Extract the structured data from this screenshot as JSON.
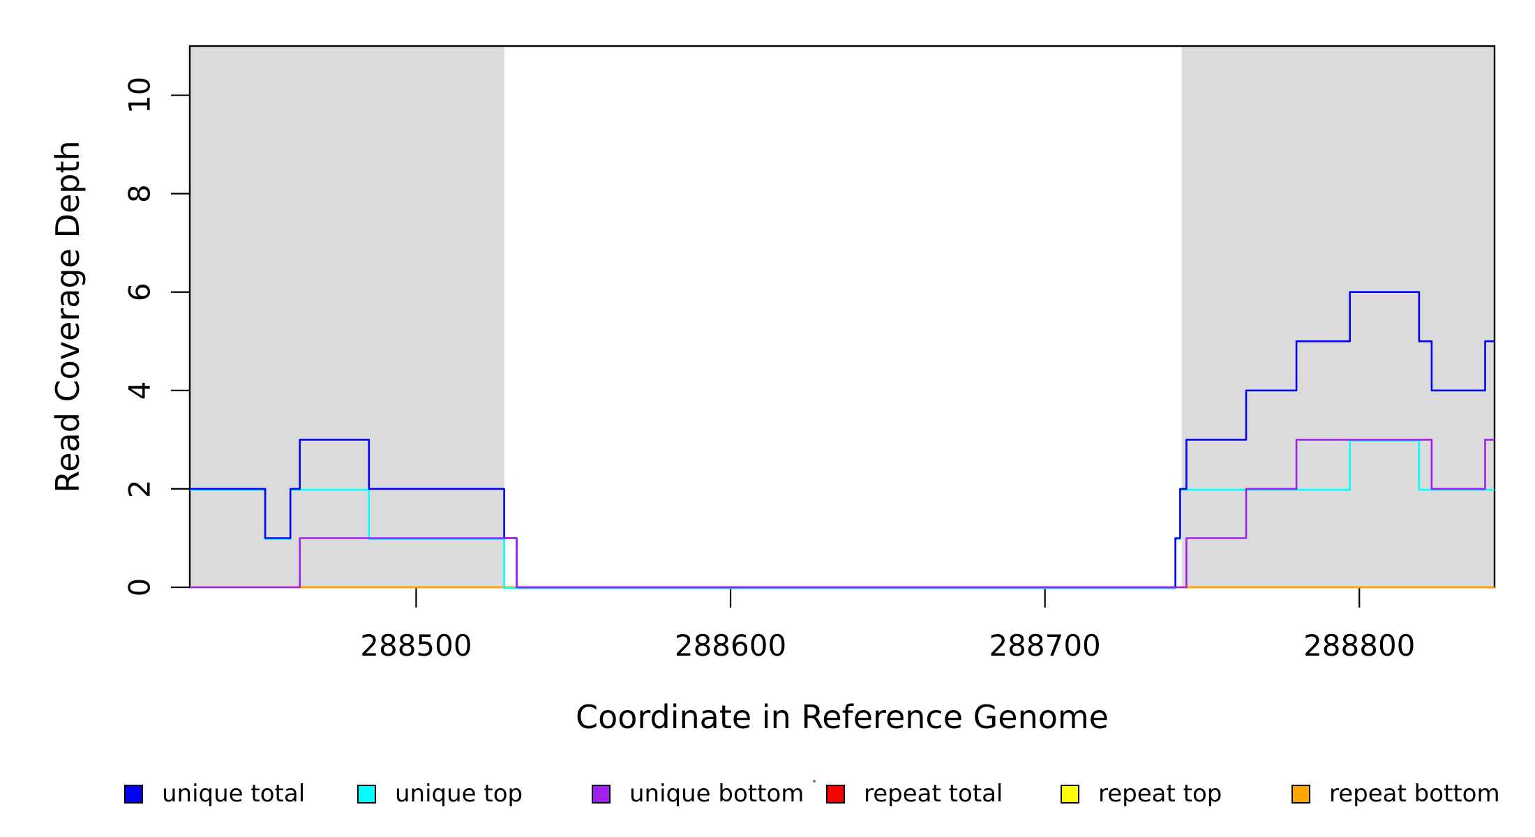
{
  "figure": {
    "xlabel": "Coordinate in Reference Genome",
    "ylabel": "Read Coverage Depth"
  },
  "legend": {
    "items": [
      {
        "label": "unique total",
        "color": "#0202F8"
      },
      {
        "label": "unique top",
        "color": "#00FFFF"
      },
      {
        "label": "unique bottom",
        "color": "#A020F0"
      },
      {
        "label": "repeat total",
        "color": "#FF0000"
      },
      {
        "label": "repeat top",
        "color": "#FFFF00"
      },
      {
        "label": "repeat bottom",
        "color": "#FFA500"
      }
    ]
  },
  "chart_data": {
    "type": "line",
    "subtype": "step",
    "title": "",
    "xlabel": "Coordinate in Reference Genome",
    "ylabel": "Read Coverage Depth",
    "xlim": [
      288428,
      288843
    ],
    "ylim": [
      0,
      11
    ],
    "x_ticks": [
      288500,
      288600,
      288700,
      288800
    ],
    "y_ticks": [
      0,
      2,
      4,
      6,
      8,
      10
    ],
    "grid": false,
    "legend_position": "bottom",
    "shade_color": "#DBDBDB",
    "shaded_regions": [
      {
        "x0": 288428,
        "x1": 288528
      },
      {
        "x0": 288743.5,
        "x1": 288843
      }
    ],
    "x_end": 288843,
    "series": [
      {
        "name": "repeat total",
        "color": "#FF0000",
        "steps": [
          [
            288428,
            0
          ]
        ]
      },
      {
        "name": "repeat top",
        "color": "#FFFF00",
        "steps": [
          [
            288428,
            0
          ]
        ]
      },
      {
        "name": "repeat bottom",
        "color": "#FFA500",
        "steps": [
          [
            288428,
            0
          ]
        ]
      },
      {
        "name": "unique top",
        "color": "#00FFFF",
        "steps": [
          [
            288428,
            2
          ],
          [
            288452,
            1
          ],
          [
            288460,
            2
          ],
          [
            288485,
            1
          ],
          [
            288528,
            0
          ],
          [
            288741.5,
            1
          ],
          [
            288743,
            2
          ],
          [
            288797,
            3
          ],
          [
            288819,
            2
          ]
        ]
      },
      {
        "name": "unique total",
        "color": "#0202F8",
        "steps": [
          [
            288428,
            2
          ],
          [
            288452,
            1
          ],
          [
            288460,
            2
          ],
          [
            288463,
            3
          ],
          [
            288485,
            2
          ],
          [
            288528,
            1
          ],
          [
            288532,
            0
          ],
          [
            288741.5,
            1
          ],
          [
            288743,
            2
          ],
          [
            288745,
            3
          ],
          [
            288764,
            4
          ],
          [
            288780,
            5
          ],
          [
            288797,
            6
          ],
          [
            288819,
            5
          ],
          [
            288823,
            4
          ],
          [
            288840,
            5
          ]
        ]
      },
      {
        "name": "unique bottom",
        "color": "#A020F0",
        "steps": [
          [
            288428,
            0
          ],
          [
            288463,
            1
          ],
          [
            288532,
            0
          ],
          [
            288745,
            1
          ],
          [
            288764,
            2
          ],
          [
            288780,
            3
          ],
          [
            288823,
            2
          ],
          [
            288840,
            3
          ]
        ]
      }
    ]
  }
}
